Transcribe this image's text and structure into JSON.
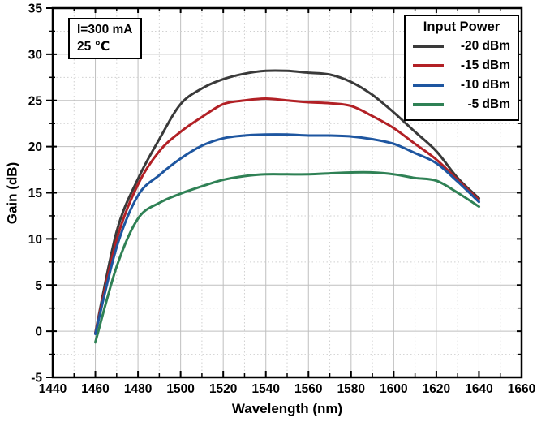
{
  "chart_data": {
    "type": "line",
    "title": "",
    "xlabel": "Wavelength (nm)",
    "ylabel": "Gain (dB)",
    "xlim": [
      1440,
      1660
    ],
    "ylim": [
      -5,
      35
    ],
    "x_major_step": 20,
    "x_minor_step": 10,
    "y_major_step": 5,
    "y_minor_step": 2.5,
    "grid": "major-solid, minor-dotted",
    "legend_title": "Input Power",
    "legend_position": "top-right-inside",
    "annotation": {
      "line1": "I=300 mA",
      "line2": "25 ℃"
    },
    "x": [
      1460,
      1470,
      1480,
      1490,
      1500,
      1510,
      1520,
      1530,
      1540,
      1550,
      1560,
      1570,
      1580,
      1590,
      1600,
      1610,
      1620,
      1630,
      1640
    ],
    "series": [
      {
        "name": "-20 dBm",
        "color": "#3a3a3a",
        "values": [
          -0.2,
          10.8,
          16.5,
          20.8,
          24.6,
          26.3,
          27.3,
          27.9,
          28.2,
          28.2,
          28.0,
          27.8,
          27.0,
          25.6,
          23.7,
          21.6,
          19.5,
          16.6,
          14.4
        ]
      },
      {
        "name": "-15 dBm",
        "color": "#b22025",
        "values": [
          -0.2,
          9.9,
          15.9,
          19.5,
          21.6,
          23.2,
          24.6,
          25.0,
          25.2,
          25.0,
          24.8,
          24.7,
          24.4,
          23.3,
          22.0,
          20.3,
          18.6,
          16.4,
          14.2
        ]
      },
      {
        "name": "-10 dBm",
        "color": "#1e56a0",
        "values": [
          -0.3,
          9.1,
          14.7,
          16.9,
          18.7,
          20.1,
          20.9,
          21.2,
          21.3,
          21.3,
          21.2,
          21.2,
          21.1,
          20.8,
          20.3,
          19.3,
          18.2,
          16.2,
          14.0
        ]
      },
      {
        "name": "-5 dBm",
        "color": "#2f8155",
        "values": [
          -1.2,
          7.0,
          12.2,
          13.9,
          14.9,
          15.7,
          16.4,
          16.8,
          17.0,
          17.0,
          17.0,
          17.1,
          17.2,
          17.2,
          17.0,
          16.6,
          16.3,
          15.0,
          13.5
        ]
      }
    ],
    "frame_color": "#000000",
    "major_grid_color": "#bfbfbf",
    "minor_grid_color": "#d0d0d0"
  }
}
